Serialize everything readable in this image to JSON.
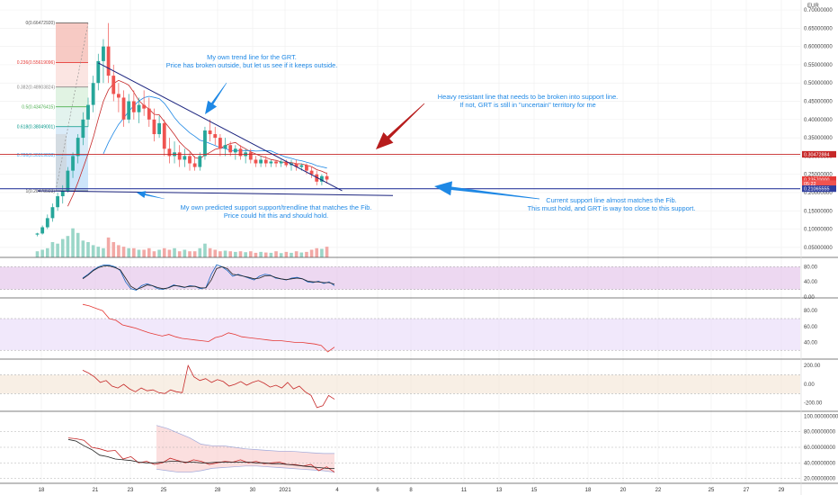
{
  "chart_data": {
    "type": "candlestick",
    "currency": "EUR",
    "y_ticks": [
      "0.70000000",
      "0.65000000",
      "0.60000000",
      "0.55000000",
      "0.50000000",
      "0.45000000",
      "0.40000000",
      "0.35000000",
      "0.30000000",
      "0.25000000",
      "0.20000000",
      "0.15000000",
      "0.10000000",
      "0.05000000"
    ],
    "x_ticks": [
      "18",
      "21",
      "23",
      "25",
      "28",
      "30",
      "2021",
      "4",
      "6",
      "8",
      "11",
      "13",
      "15",
      "18",
      "20",
      "22",
      "25",
      "27",
      "29"
    ],
    "price_badges": [
      {
        "value": "0.30472884",
        "color": "#c62828",
        "y": 0.30472884
      },
      {
        "value": "0.23570000",
        "color": "#e53935",
        "y": 0.2357
      },
      {
        "value": "05:22",
        "color": "#ef5350",
        "y": 0.2245
      },
      {
        "value": "0.21065555",
        "color": "#303f9f",
        "y": 0.21065555
      }
    ],
    "fib_levels": [
      {
        "ratio": "0",
        "label": "0(0.66472920)",
        "value": 0.6647292,
        "color": "#555555"
      },
      {
        "ratio": "0.236",
        "label": "0.236(0.55619096)",
        "value": 0.55619096,
        "color": "#e53935"
      },
      {
        "ratio": "0.382",
        "label": "0.382(0.48903824)",
        "value": 0.48903824,
        "color": "#888888"
      },
      {
        "ratio": "0.5",
        "label": "0.5(0.43476415)",
        "value": 0.43476415,
        "color": "#4caf50"
      },
      {
        "ratio": "0.618",
        "label": "0.618(0.38049001)",
        "value": 0.38049001,
        "color": "#009688"
      },
      {
        "ratio": "0.786",
        "label": "0.786(0.30319838)",
        "value": 0.30319838,
        "color": "#42a5f5"
      },
      {
        "ratio": "1",
        "label": "1(0.20478923)",
        "value": 0.20478923,
        "color": "#555555"
      }
    ],
    "annotations": [
      {
        "lines": [
          "My own trend line for the GRT.",
          "Price has broken outside, but let us see if it keeps outside."
        ]
      },
      {
        "lines": [
          "Heavy resistant line that needs to be broken into support line.",
          "If not, GRT is still in \"uncertain\" territory for me"
        ]
      },
      {
        "lines": [
          "My own predicted support support/trendline that matches the Fib.",
          "Price could hit this and should hold."
        ]
      },
      {
        "lines": [
          "Current support line almost matches the Fib.",
          "This must hold, and GRT is way too close to this support."
        ]
      }
    ],
    "candles": [
      [
        0.085,
        0.09,
        0.08,
        0.088
      ],
      [
        0.088,
        0.11,
        0.085,
        0.105
      ],
      [
        0.105,
        0.14,
        0.1,
        0.13
      ],
      [
        0.13,
        0.17,
        0.12,
        0.16
      ],
      [
        0.16,
        0.2,
        0.15,
        0.19
      ],
      [
        0.19,
        0.22,
        0.17,
        0.205
      ],
      [
        0.205,
        0.27,
        0.2,
        0.26
      ],
      [
        0.26,
        0.31,
        0.24,
        0.3
      ],
      [
        0.3,
        0.36,
        0.28,
        0.35
      ],
      [
        0.35,
        0.42,
        0.33,
        0.4
      ],
      [
        0.4,
        0.46,
        0.38,
        0.44
      ],
      [
        0.44,
        0.52,
        0.42,
        0.5
      ],
      [
        0.5,
        0.58,
        0.48,
        0.56
      ],
      [
        0.56,
        0.62,
        0.5,
        0.6
      ],
      [
        0.6,
        0.664,
        0.5,
        0.52
      ],
      [
        0.52,
        0.55,
        0.45,
        0.47
      ],
      [
        0.47,
        0.5,
        0.42,
        0.46
      ],
      [
        0.46,
        0.48,
        0.38,
        0.4
      ],
      [
        0.4,
        0.47,
        0.39,
        0.45
      ],
      [
        0.45,
        0.48,
        0.4,
        0.42
      ],
      [
        0.42,
        0.46,
        0.39,
        0.44
      ],
      [
        0.44,
        0.48,
        0.41,
        0.43
      ],
      [
        0.43,
        0.46,
        0.38,
        0.4
      ],
      [
        0.4,
        0.43,
        0.34,
        0.36
      ],
      [
        0.36,
        0.41,
        0.35,
        0.39
      ],
      [
        0.39,
        0.4,
        0.3,
        0.32
      ],
      [
        0.32,
        0.35,
        0.28,
        0.3
      ],
      [
        0.3,
        0.34,
        0.28,
        0.31
      ],
      [
        0.31,
        0.33,
        0.27,
        0.29
      ],
      [
        0.29,
        0.32,
        0.27,
        0.3
      ],
      [
        0.3,
        0.31,
        0.26,
        0.28
      ],
      [
        0.28,
        0.3,
        0.26,
        0.27
      ],
      [
        0.27,
        0.31,
        0.26,
        0.3
      ],
      [
        0.3,
        0.38,
        0.29,
        0.37
      ],
      [
        0.37,
        0.4,
        0.34,
        0.36
      ],
      [
        0.36,
        0.38,
        0.33,
        0.35
      ],
      [
        0.35,
        0.36,
        0.3,
        0.32
      ],
      [
        0.32,
        0.35,
        0.3,
        0.33
      ],
      [
        0.33,
        0.34,
        0.3,
        0.31
      ],
      [
        0.31,
        0.33,
        0.29,
        0.32
      ],
      [
        0.32,
        0.33,
        0.29,
        0.3
      ],
      [
        0.3,
        0.32,
        0.28,
        0.31
      ],
      [
        0.31,
        0.32,
        0.28,
        0.29
      ],
      [
        0.29,
        0.3,
        0.27,
        0.28
      ],
      [
        0.28,
        0.3,
        0.27,
        0.29
      ],
      [
        0.29,
        0.3,
        0.27,
        0.28
      ],
      [
        0.28,
        0.29,
        0.27,
        0.285
      ],
      [
        0.285,
        0.29,
        0.27,
        0.28
      ],
      [
        0.28,
        0.29,
        0.27,
        0.285
      ],
      [
        0.285,
        0.29,
        0.27,
        0.275
      ],
      [
        0.275,
        0.29,
        0.26,
        0.28
      ],
      [
        0.28,
        0.29,
        0.26,
        0.27
      ],
      [
        0.27,
        0.28,
        0.26,
        0.275
      ],
      [
        0.275,
        0.28,
        0.25,
        0.26
      ],
      [
        0.26,
        0.27,
        0.24,
        0.25
      ],
      [
        0.25,
        0.26,
        0.22,
        0.23
      ],
      [
        0.23,
        0.25,
        0.22,
        0.245
      ],
      [
        0.245,
        0.255,
        0.225,
        0.2357
      ]
    ],
    "volume": [
      0.2,
      0.25,
      0.3,
      0.5,
      0.45,
      0.6,
      0.7,
      0.95,
      0.8,
      0.55,
      0.5,
      0.4,
      0.35,
      0.3,
      0.65,
      0.5,
      0.4,
      0.35,
      0.3,
      0.3,
      0.25,
      0.25,
      0.3,
      0.2,
      0.25,
      0.3,
      0.25,
      0.3,
      0.2,
      0.25,
      0.2,
      0.2,
      0.3,
      0.45,
      0.3,
      0.25,
      0.2,
      0.22,
      0.2,
      0.18,
      0.2,
      0.17,
      0.2,
      0.15,
      0.18,
      0.16,
      0.15,
      0.2,
      0.14,
      0.18,
      0.15,
      0.2,
      0.16,
      0.18,
      0.25,
      0.3,
      0.28,
      0.35
    ],
    "lines": {
      "trendline": {
        "from": [
          12,
          0.555
        ],
        "to": [
          60,
          0.205
        ],
        "color": "#1a237e"
      },
      "resistance_line": {
        "y": 0.30472884,
        "color": "#c62828"
      },
      "support_line": {
        "y": 0.21065555,
        "color": "#303f9f"
      },
      "predicted_support": {
        "from": [
          0,
          0.205
        ],
        "to": [
          70,
          0.192
        ],
        "color": "#1a237e"
      }
    },
    "indicators": [
      {
        "name": "stoch",
        "ticks": [
          "80.00",
          "40.00",
          "0.00"
        ],
        "ylim": [
          0,
          100
        ],
        "band": [
          20,
          80
        ],
        "band_color": "#e1bee7",
        "series": [
          {
            "color": "#1565c0",
            "values": [
              50,
              60,
              72,
              80,
              85,
              84,
              80,
              70,
              40,
              22,
              18,
              30,
              35,
              30,
              22,
              20,
              25,
              32,
              28,
              25,
              30,
              28,
              22,
              25,
              60,
              85,
              80,
              70,
              55,
              60,
              55,
              50,
              45,
              55,
              60,
              58,
              50,
              48,
              45,
              50,
              52,
              48,
              40,
              38,
              42,
              36,
              40,
              30
            ]
          },
          {
            "color": "#222222",
            "values": [
              48,
              58,
              70,
              78,
              82,
              82,
              78,
              72,
              50,
              28,
              20,
              25,
              32,
              30,
              25,
              22,
              24,
              30,
              29,
              26,
              28,
              28,
              24,
              24,
              45,
              75,
              80,
              75,
              60,
              58,
              55,
              52,
              48,
              50,
              56,
              57,
              52,
              48,
              46,
              48,
              50,
              48,
              42,
              40,
              40,
              38,
              38,
              34
            ]
          }
        ]
      },
      {
        "name": "rsi",
        "ticks": [
          "80.00",
          "60.00",
          "40.00"
        ],
        "ylim": [
          20,
          95
        ],
        "band": [
          30,
          70
        ],
        "band_color": "#e8d8f8",
        "series": [
          {
            "color": "#e53935",
            "values": [
              88,
              86,
              83,
              80,
              70,
              68,
              62,
              60,
              58,
              55,
              52,
              50,
              48,
              50,
              47,
              45,
              44,
              43,
              42,
              41,
              46,
              48,
              52,
              50,
              47,
              46,
              45,
              44,
              43,
              42,
              42,
              41,
              40,
              40,
              39,
              38,
              36,
              28,
              34
            ]
          }
        ]
      },
      {
        "name": "cci",
        "ticks": [
          "200.00",
          "0.00",
          "-200.00"
        ],
        "ylim": [
          -280,
          260
        ],
        "band": [
          -100,
          100
        ],
        "band_color": "#f3e4d4",
        "series": [
          {
            "color": "#c62828",
            "values": [
              150,
              120,
              80,
              20,
              40,
              -20,
              -40,
              0,
              -50,
              -80,
              -40,
              -70,
              -60,
              -90,
              -100,
              -60,
              -80,
              -90,
              200,
              80,
              40,
              60,
              20,
              50,
              30,
              -20,
              0,
              30,
              -10,
              20,
              40,
              10,
              -30,
              -10,
              -40,
              20,
              -50,
              -20,
              -80,
              -120,
              -250,
              -230,
              -120,
              -160
            ]
          }
        ]
      },
      {
        "name": "bb_rsi",
        "ticks": [
          "100.00000000",
          "80.00000000",
          "60.00000000",
          "40.00000000",
          "20.00000000"
        ],
        "ylim": [
          15,
          105
        ],
        "bands": {
          "upper": [
            88,
            84,
            78,
            72,
            64,
            62,
            62,
            60,
            58,
            57,
            56,
            55,
            55,
            54,
            53,
            52,
            52
          ],
          "lower": [
            32,
            30,
            28,
            28,
            30,
            33,
            34,
            35,
            36,
            36,
            35,
            34,
            33,
            32,
            31,
            30,
            28
          ]
        },
        "series": [
          {
            "color": "#c62828",
            "values": [
              72,
              71,
              69,
              60,
              58,
              55,
              56,
              45,
              48,
              40,
              42,
              38,
              40,
              46,
              43,
              40,
              44,
              42,
              38,
              40,
              42,
              41,
              44,
              40,
              42,
              39,
              40,
              41,
              38,
              38,
              36,
              38,
              30,
              35,
              28
            ]
          },
          {
            "color": "#222222",
            "values": [
              70,
              68,
              62,
              57,
              50,
              48,
              45,
              44,
              43,
              41,
              40,
              40,
              41,
              42,
              42,
              41,
              41,
              40,
              40,
              41,
              41,
              41,
              41,
              41,
              40,
              40,
              39,
              39,
              38,
              37,
              36,
              35,
              34,
              33,
              33
            ]
          }
        ]
      }
    ]
  }
}
